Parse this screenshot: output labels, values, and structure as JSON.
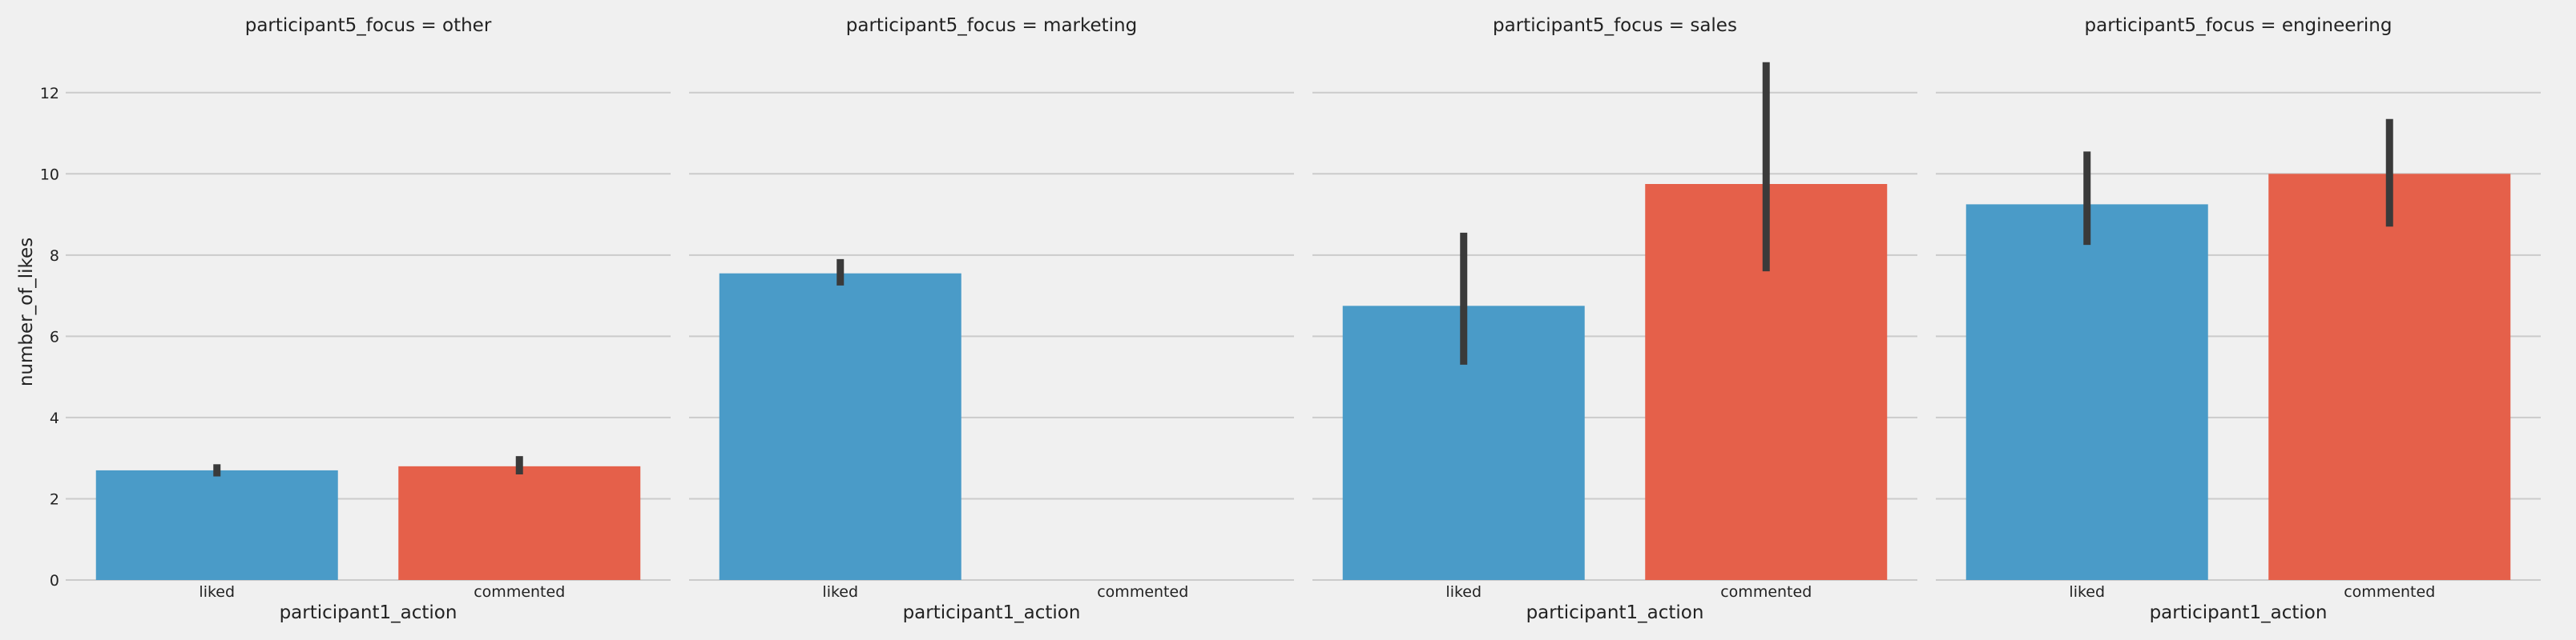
{
  "chart_data": {
    "type": "bar",
    "facet_variable": "participant5_focus",
    "ylabel": "number_of_likes",
    "xlabel": "participant1_action",
    "ylim": [
      0,
      13
    ],
    "yticks": [
      0,
      2,
      4,
      6,
      8,
      10,
      12
    ],
    "grid": true,
    "categories": [
      "liked",
      "commented"
    ],
    "colors": {
      "liked": "#4a9bc8",
      "commented": "#e5604a",
      "error_bar": "#3a3a3a",
      "grid": "#cbcbcb",
      "background": "#f0f0f0"
    },
    "facets": [
      {
        "title": "participant5_focus = other",
        "bars": [
          {
            "category": "liked",
            "value": 2.7,
            "ci": [
              2.55,
              2.85
            ]
          },
          {
            "category": "commented",
            "value": 2.8,
            "ci": [
              2.6,
              3.05
            ]
          }
        ]
      },
      {
        "title": "participant5_focus = marketing",
        "bars": [
          {
            "category": "liked",
            "value": 7.55,
            "ci": [
              7.25,
              7.9
            ]
          },
          {
            "category": "commented",
            "value": null,
            "ci": null
          }
        ]
      },
      {
        "title": "participant5_focus = sales",
        "bars": [
          {
            "category": "liked",
            "value": 6.75,
            "ci": [
              5.3,
              8.55
            ]
          },
          {
            "category": "commented",
            "value": 9.75,
            "ci": [
              7.6,
              12.75
            ]
          }
        ]
      },
      {
        "title": "participant5_focus = engineering",
        "bars": [
          {
            "category": "liked",
            "value": 9.25,
            "ci": [
              8.25,
              10.55
            ]
          },
          {
            "category": "commented",
            "value": 10.0,
            "ci": [
              8.7,
              11.35
            ]
          }
        ]
      }
    ]
  }
}
